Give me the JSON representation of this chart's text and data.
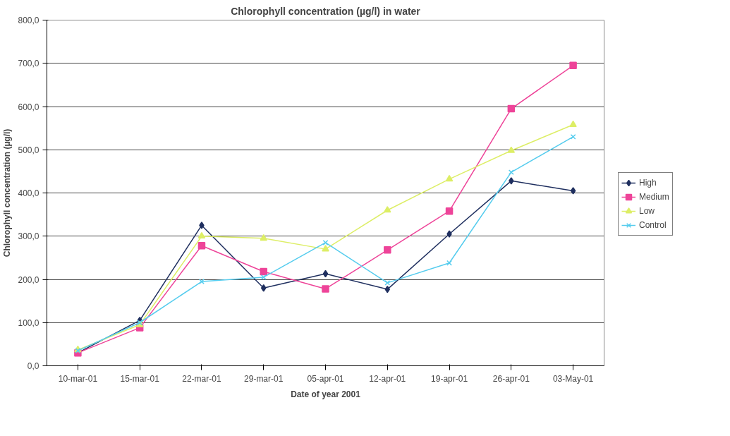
{
  "chart_data": {
    "type": "line",
    "title": "Chlorophyll concentration (µg/l) in water",
    "xlabel": "Date of year 2001",
    "ylabel": "Chlorophyll concentration (µg/l)",
    "categories": [
      "10-mar-01",
      "15-mar-01",
      "22-mar-01",
      "29-mar-01",
      "05-apr-01",
      "12-apr-01",
      "19-apr-01",
      "26-apr-01",
      "03-May-01"
    ],
    "ylim": [
      0,
      800
    ],
    "yticks": [
      {
        "value": 0,
        "label": "0,0"
      },
      {
        "value": 100,
        "label": "100,0"
      },
      {
        "value": 200,
        "label": "200,0"
      },
      {
        "value": 300,
        "label": "300,0"
      },
      {
        "value": 400,
        "label": "400,0"
      },
      {
        "value": 500,
        "label": "500,0"
      },
      {
        "value": 600,
        "label": "600,0"
      },
      {
        "value": 700,
        "label": "700,0"
      },
      {
        "value": 800,
        "label": "800,0"
      }
    ],
    "grid": "y",
    "legend": "right",
    "series": [
      {
        "name": "High",
        "color": "#1f2f5f",
        "marker": "diamond",
        "values": [
          30,
          105,
          325,
          180,
          213,
          177,
          305,
          428,
          405
        ]
      },
      {
        "name": "Medium",
        "color": "#ee4499",
        "marker": "square",
        "values": [
          30,
          88,
          278,
          218,
          178,
          268,
          358,
          595,
          695
        ]
      },
      {
        "name": "Low",
        "color": "#ddee66",
        "marker": "triangle",
        "values": [
          37,
          95,
          300,
          295,
          270,
          360,
          432,
          498,
          558
        ]
      },
      {
        "name": "Control",
        "color": "#55ccee",
        "marker": "cross",
        "values": [
          35,
          100,
          195,
          205,
          285,
          192,
          238,
          448,
          530
        ]
      }
    ]
  }
}
